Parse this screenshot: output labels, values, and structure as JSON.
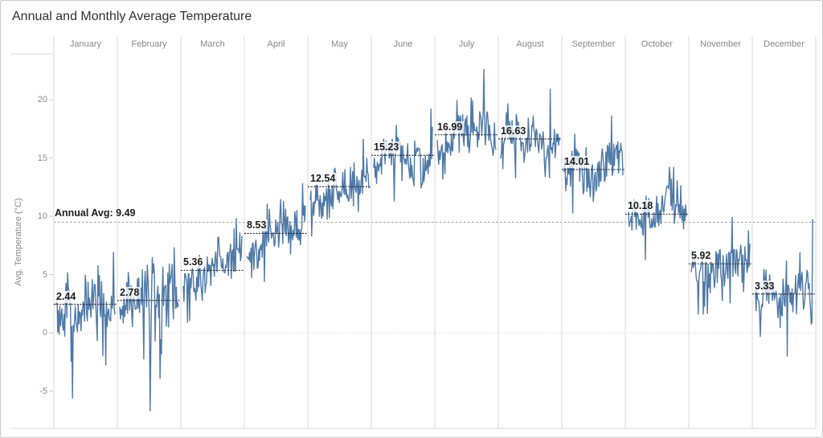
{
  "window": {
    "title": "Annual and Monthly Average Temperature"
  },
  "chart_data": {
    "type": "line",
    "title": "Annual and Monthly Average Temperature",
    "ylabel": "Avg. Temperature (°C)",
    "legend": "none",
    "grid": "zero-line-only",
    "axis": {
      "min": -8.2,
      "max": 23.8,
      "ticks": [
        20,
        15,
        10,
        5,
        0,
        -5
      ]
    },
    "annual_avg": 9.49,
    "annual_avg_label": "Annual Avg: 9.49",
    "series_color": "#4e79a7",
    "colors": {
      "month_ref_line": "#1f1f1f",
      "annual_ref_line": "#9a9a9a",
      "zero_line": "#c6c6c6",
      "separator": "#d8d8d8",
      "tick_mark": "#c9c9c9",
      "muted_text": "#878787",
      "title_text": "#323232",
      "label_text": "#1c1c1c"
    },
    "seed": 20,
    "points_per_month": 84,
    "months": [
      {
        "name": "January",
        "label": "2.44",
        "avg": 2.44,
        "min": -5.6,
        "max": 6.9,
        "trend": 0.8,
        "spread": 2.6,
        "dip_prob": 0.05,
        "dip_mag": 4.0,
        "peak_prob": 0.02,
        "peak_mag": 2.0,
        "dip_pos": 0.28,
        "peak_pos": 0.97
      },
      {
        "name": "February",
        "label": "2.78",
        "avg": 2.78,
        "min": -6.7,
        "max": 7.3,
        "trend": 1.2,
        "spread": 2.8,
        "dip_prob": 0.06,
        "dip_mag": 4.5,
        "peak_prob": 0.02,
        "peak_mag": 2.0,
        "dip_pos": 0.52,
        "peak_pos": 0.93
      },
      {
        "name": "March",
        "label": "5.36",
        "avg": 5.36,
        "min": 0.9,
        "max": 9.8,
        "trend": 2.8,
        "spread": 2.3,
        "dip_prob": 0.03,
        "dip_mag": 2.5,
        "peak_prob": 0.02,
        "peak_mag": 2.0,
        "dip_pos": 0.07,
        "peak_pos": 0.9
      },
      {
        "name": "April",
        "label": "8.53",
        "avg": 8.53,
        "min": 4.4,
        "max": 12.8,
        "trend": 3.0,
        "spread": 2.1,
        "dip_prob": 0.02,
        "dip_mag": 2.0,
        "peak_prob": 0.02,
        "peak_mag": 2.0,
        "dip_pos": 0.3,
        "peak_pos": 0.95
      },
      {
        "name": "May",
        "label": "12.54",
        "avg": 12.54,
        "min": 8.3,
        "max": 16.6,
        "trend": 2.6,
        "spread": 2.1,
        "dip_prob": 0.02,
        "dip_mag": 2.0,
        "peak_prob": 0.02,
        "peak_mag": 2.0,
        "dip_pos": 0.02,
        "peak_pos": 0.9
      },
      {
        "name": "June",
        "label": "15.23",
        "avg": 15.23,
        "min": 11.3,
        "max": 19.2,
        "trend": 1.8,
        "spread": 2.0,
        "dip_prob": 0.02,
        "dip_mag": 2.0,
        "peak_prob": 0.02,
        "peak_mag": 2.0,
        "dip_pos": 0.35,
        "peak_pos": 0.97
      },
      {
        "name": "July",
        "label": "16.99",
        "avg": 16.99,
        "min": 13.2,
        "max": 22.6,
        "trend": 1.8,
        "spread": 2.1,
        "dip_prob": 0.02,
        "dip_mag": 2.0,
        "peak_prob": 0.05,
        "peak_mag": 3.0,
        "dip_pos": 0.1,
        "peak_pos": 0.8
      },
      {
        "name": "August",
        "label": "16.63",
        "avg": 16.63,
        "min": 13.3,
        "max": 20.9,
        "trend": 0.6,
        "spread": 2.0,
        "dip_prob": 0.02,
        "dip_mag": 2.0,
        "peak_prob": 0.04,
        "peak_mag": 2.5,
        "dip_pos": 0.25,
        "peak_pos": 0.84
      },
      {
        "name": "September",
        "label": "14.01",
        "avg": 14.01,
        "min": 10.3,
        "max": 18.6,
        "trend": 2.0,
        "spread": 2.0,
        "dip_prob": 0.02,
        "dip_mag": 2.0,
        "peak_prob": 0.03,
        "peak_mag": 2.5,
        "dip_pos": 0.15,
        "peak_pos": 0.81
      },
      {
        "name": "October",
        "label": "10.18",
        "avg": 10.18,
        "min": 6.3,
        "max": 14.2,
        "trend": 1.8,
        "spread": 2.1,
        "dip_prob": 0.03,
        "dip_mag": 2.5,
        "peak_prob": 0.02,
        "peak_mag": 2.0,
        "dip_pos": 0.3,
        "peak_pos": 0.78
      },
      {
        "name": "November",
        "label": "5.92",
        "avg": 5.92,
        "min": 1.6,
        "max": 9.9,
        "trend": 1.2,
        "spread": 2.2,
        "dip_prob": 0.04,
        "dip_mag": 3.0,
        "peak_prob": 0.03,
        "peak_mag": 2.5,
        "dip_pos": 0.2,
        "peak_pos": 0.7
      },
      {
        "name": "December",
        "label": "3.33",
        "avg": 3.33,
        "min": -2.0,
        "max": 9.7,
        "trend": 0.8,
        "spread": 2.4,
        "dip_prob": 0.05,
        "dip_mag": 3.5,
        "peak_prob": 0.02,
        "peak_mag": 2.0,
        "dip_pos": 0.55,
        "peak_pos": 0.99,
        "end_spike": 9.7
      }
    ]
  }
}
